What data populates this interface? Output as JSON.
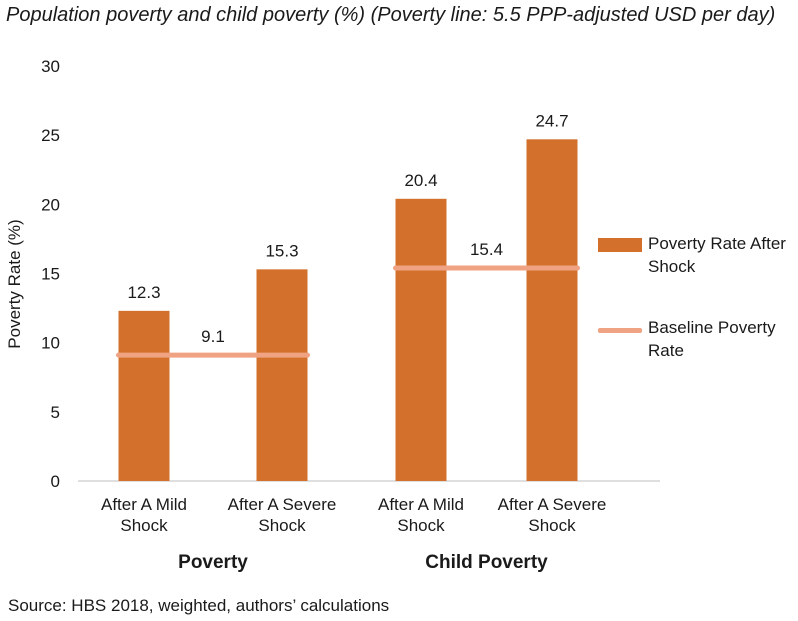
{
  "chart_data": {
    "type": "bar",
    "title": "Population poverty and child poverty (%) (Poverty line: 5.5 PPP-adjusted USD per day)",
    "ylabel": "Poverty Rate (%)",
    "ylim": [
      0,
      30
    ],
    "yticks": [
      0,
      5,
      10,
      15,
      20,
      25,
      30
    ],
    "grid": false,
    "legend_position": "right",
    "groups": [
      {
        "name": "Poverty",
        "categories": [
          "After A Mild Shock",
          "After A Severe Shock"
        ],
        "values": [
          12.3,
          15.3
        ],
        "value_labels": [
          "12.3",
          "15.3"
        ],
        "baseline": 9.1,
        "baseline_label": "9.1"
      },
      {
        "name": "Child Poverty",
        "categories": [
          "After A Mild Shock",
          "After A Severe Shock"
        ],
        "values": [
          20.4,
          24.7
        ],
        "value_labels": [
          "20.4",
          "24.7"
        ],
        "baseline": 15.4,
        "baseline_label": "15.4"
      }
    ],
    "series": [
      {
        "name": "Poverty Rate After Shock",
        "kind": "bar",
        "color": "#d2702c"
      },
      {
        "name": "Baseline Poverty Rate",
        "kind": "line",
        "color": "#f0a383"
      }
    ],
    "source": "Source: HBS 2018, weighted, authors’ calculations"
  }
}
